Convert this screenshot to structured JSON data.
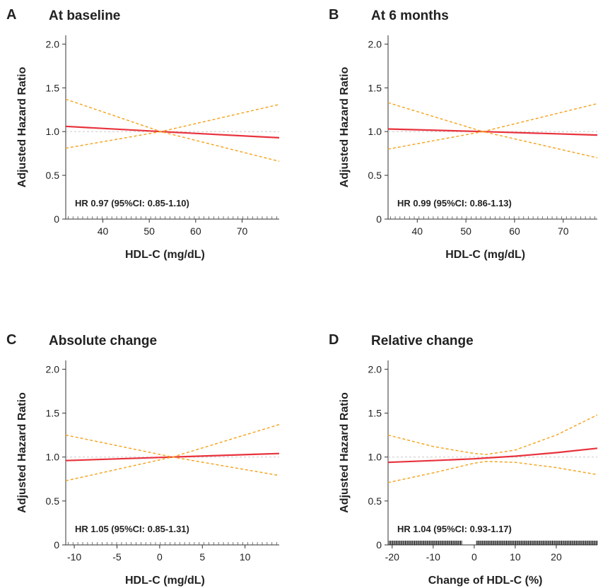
{
  "chart_data": [
    {
      "type": "line",
      "panel_letter": "A",
      "title": "At baseline",
      "xlabel": "HDL-C (mg/dL)",
      "ylabel": "Adjusted Hazard Ratio",
      "xlim": [
        32,
        78
      ],
      "ylim": [
        0,
        2.1
      ],
      "xticks": [
        40,
        50,
        60,
        70
      ],
      "yticks": [
        0,
        0.5,
        1.0,
        1.5,
        2.0
      ],
      "ytick_labels": [
        "0",
        "0.5",
        "1.0",
        "1.5",
        "2.0"
      ],
      "reference_line": 1.0,
      "hr_text": "HR 0.97 (95%CI: 0.85-1.10)",
      "rug": "minor-ticks",
      "series": [
        {
          "role": "estimate",
          "color": "#e8323c",
          "x": [
            32,
            52.5,
            78
          ],
          "y": [
            1.06,
            1.0,
            0.93
          ]
        },
        {
          "role": "upper-ci",
          "color": "#f5a623",
          "x": [
            32,
            52.5,
            78
          ],
          "y": [
            1.37,
            1.0,
            1.31
          ]
        },
        {
          "role": "lower-ci",
          "color": "#f5a623",
          "x": [
            32,
            52.5,
            78
          ],
          "y": [
            0.81,
            1.0,
            0.66
          ]
        }
      ]
    },
    {
      "type": "line",
      "panel_letter": "B",
      "title": "At 6 months",
      "xlabel": "HDL-C (mg/dL)",
      "ylabel": "Adjusted Hazard Ratio",
      "xlim": [
        34,
        77
      ],
      "ylim": [
        0,
        2.1
      ],
      "xticks": [
        40,
        50,
        60,
        70
      ],
      "yticks": [
        0,
        0.5,
        1.0,
        1.5,
        2.0
      ],
      "ytick_labels": [
        "0",
        "0.5",
        "1.0",
        "1.5",
        "2.0"
      ],
      "reference_line": 1.0,
      "hr_text": "HR 0.99 (95%CI: 0.86-1.13)",
      "rug": "minor-ticks",
      "series": [
        {
          "role": "estimate",
          "color": "#e8323c",
          "x": [
            34,
            53.5,
            77
          ],
          "y": [
            1.03,
            1.0,
            0.96
          ]
        },
        {
          "role": "upper-ci",
          "color": "#f5a623",
          "x": [
            34,
            53.5,
            77
          ],
          "y": [
            1.33,
            1.0,
            1.32
          ]
        },
        {
          "role": "lower-ci",
          "color": "#f5a623",
          "x": [
            34,
            53.5,
            77
          ],
          "y": [
            0.8,
            1.0,
            0.7
          ]
        }
      ]
    },
    {
      "type": "line",
      "panel_letter": "C",
      "title": "Absolute change",
      "xlabel": "HDL-C (mg/dL)",
      "ylabel": "Adjusted Hazard Ratio",
      "xlim": [
        -11,
        14
      ],
      "ylim": [
        0,
        2.1
      ],
      "xticks": [
        -10,
        -5,
        0,
        5,
        10
      ],
      "yticks": [
        0,
        0.5,
        1.0,
        1.5,
        2.0
      ],
      "ytick_labels": [
        "0",
        "0.5",
        "1.0",
        "1.5",
        "2.0"
      ],
      "reference_line": 1.0,
      "hr_text": "HR 1.05 (95%CI: 0.85-1.31)",
      "rug": "minor-ticks",
      "series": [
        {
          "role": "estimate",
          "color": "#e8323c",
          "x": [
            -11,
            1.5,
            14
          ],
          "y": [
            0.96,
            1.0,
            1.04
          ]
        },
        {
          "role": "upper-ci",
          "color": "#f5a623",
          "x": [
            -11,
            1.5,
            14
          ],
          "y": [
            1.25,
            1.0,
            1.37
          ]
        },
        {
          "role": "lower-ci",
          "color": "#f5a623",
          "x": [
            -11,
            1.5,
            14
          ],
          "y": [
            0.73,
            1.0,
            0.79
          ]
        }
      ]
    },
    {
      "type": "line",
      "panel_letter": "D",
      "title": "Relative change",
      "xlabel": "Change of HDL-C (%)",
      "ylabel": "Adjusted Hazard Ratio",
      "xlim": [
        -21,
        30
      ],
      "ylim": [
        0,
        2.1
      ],
      "xticks": [
        -20,
        -10,
        0,
        10,
        20
      ],
      "yticks": [
        0,
        0.5,
        1.0,
        1.5,
        2.0
      ],
      "ytick_labels": [
        "0",
        "0.5",
        "1.0",
        "1.5",
        "2.0"
      ],
      "reference_line": 1.0,
      "hr_text": "HR 1.04 (95%CI: 0.93-1.17)",
      "rug": "dense",
      "series": [
        {
          "role": "estimate",
          "color": "#e8323c",
          "x": [
            -21,
            -10,
            0,
            3,
            10,
            20,
            30
          ],
          "y": [
            0.94,
            0.96,
            0.98,
            0.99,
            1.01,
            1.05,
            1.1
          ]
        },
        {
          "role": "upper-ci",
          "color": "#f5a623",
          "x": [
            -21,
            -10,
            0,
            3,
            10,
            20,
            30
          ],
          "y": [
            1.25,
            1.12,
            1.04,
            1.03,
            1.08,
            1.25,
            1.48
          ]
        },
        {
          "role": "lower-ci",
          "color": "#f5a623",
          "x": [
            -21,
            -10,
            0,
            3,
            10,
            20,
            30
          ],
          "y": [
            0.71,
            0.82,
            0.93,
            0.95,
            0.94,
            0.88,
            0.8
          ]
        }
      ]
    }
  ]
}
